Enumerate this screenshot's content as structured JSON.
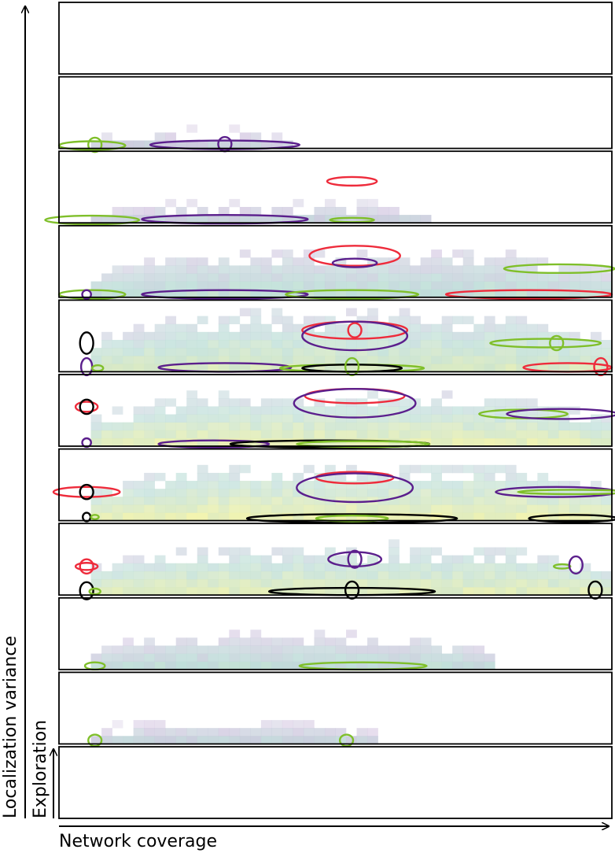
{
  "chart_data": {
    "type": "heatmap",
    "title": "",
    "xlabel": "Network coverage",
    "ylabel": "Localization variance",
    "inner_ylabel": "Exploration",
    "grid": false,
    "colors": {
      "purple": "#5b1f8c",
      "green": "#7fbf2a",
      "red": "#ee2b3b",
      "black": "#000000",
      "heat_low": "#c9b6d9",
      "heat_mid": "#b9dcd6",
      "heat_high": "#f4f4a8"
    },
    "panels": [
      {
        "density": {
          "left": 0.06,
          "right": 0.06,
          "height": 0.0,
          "intensity": 0.0
        },
        "markers": []
      },
      {
        "density": {
          "left": 0.06,
          "right": 0.42,
          "height": 0.18,
          "intensity": 0.25
        },
        "markers": [
          {
            "color": "green",
            "cx": 0.06,
            "cy": 0.04,
            "rx": 0.06,
            "ry": 0.06
          },
          {
            "color": "green",
            "cx": 0.065,
            "cy": 0.05,
            "rx": 0.012,
            "ry": 0.1
          },
          {
            "color": "purple",
            "cx": 0.3,
            "cy": 0.05,
            "rx": 0.135,
            "ry": 0.06
          },
          {
            "color": "purple",
            "cx": 0.3,
            "cy": 0.06,
            "rx": 0.012,
            "ry": 0.1
          }
        ]
      },
      {
        "density": {
          "left": 0.06,
          "right": 0.67,
          "height": 0.2,
          "intensity": 0.3
        },
        "markers": [
          {
            "color": "green",
            "cx": 0.06,
            "cy": 0.04,
            "rx": 0.085,
            "ry": 0.06
          },
          {
            "color": "purple",
            "cx": 0.3,
            "cy": 0.05,
            "rx": 0.15,
            "ry": 0.06
          },
          {
            "color": "green",
            "cx": 0.53,
            "cy": 0.04,
            "rx": 0.04,
            "ry": 0.03
          },
          {
            "color": "red",
            "cx": 0.53,
            "cy": 0.58,
            "rx": 0.045,
            "ry": 0.06
          }
        ]
      },
      {
        "density": {
          "left": 0.06,
          "right": 1.0,
          "height": 0.55,
          "intensity": 0.5
        },
        "markers": [
          {
            "color": "green",
            "cx": 0.06,
            "cy": 0.04,
            "rx": 0.06,
            "ry": 0.06
          },
          {
            "color": "purple",
            "cx": 0.05,
            "cy": 0.04,
            "rx": 0.008,
            "ry": 0.06
          },
          {
            "color": "purple",
            "cx": 0.3,
            "cy": 0.04,
            "rx": 0.15,
            "ry": 0.06
          },
          {
            "color": "green",
            "cx": 0.53,
            "cy": 0.04,
            "rx": 0.12,
            "ry": 0.06
          },
          {
            "color": "red",
            "cx": 0.85,
            "cy": 0.04,
            "rx": 0.15,
            "ry": 0.06
          },
          {
            "color": "red",
            "cx": 0.535,
            "cy": 0.58,
            "rx": 0.082,
            "ry": 0.14
          },
          {
            "color": "purple",
            "cx": 0.535,
            "cy": 0.48,
            "rx": 0.04,
            "ry": 0.06
          },
          {
            "color": "green",
            "cx": 0.905,
            "cy": 0.4,
            "rx": 0.1,
            "ry": 0.06
          }
        ]
      },
      {
        "density": {
          "left": 0.06,
          "right": 1.0,
          "height": 0.75,
          "intensity": 0.75
        },
        "markers": [
          {
            "color": "black",
            "cx": 0.05,
            "cy": 0.4,
            "rx": 0.012,
            "ry": 0.15
          },
          {
            "color": "purple",
            "cx": 0.05,
            "cy": 0.07,
            "rx": 0.01,
            "ry": 0.12
          },
          {
            "color": "green",
            "cx": 0.07,
            "cy": 0.05,
            "rx": 0.01,
            "ry": 0.04
          },
          {
            "color": "purple",
            "cx": 0.3,
            "cy": 0.06,
            "rx": 0.12,
            "ry": 0.06
          },
          {
            "color": "green",
            "cx": 0.53,
            "cy": 0.05,
            "rx": 0.13,
            "ry": 0.05
          },
          {
            "color": "black",
            "cx": 0.53,
            "cy": 0.05,
            "rx": 0.09,
            "ry": 0.05
          },
          {
            "color": "green",
            "cx": 0.53,
            "cy": 0.07,
            "rx": 0.012,
            "ry": 0.12
          },
          {
            "color": "red",
            "cx": 0.535,
            "cy": 0.58,
            "rx": 0.095,
            "ry": 0.12
          },
          {
            "color": "purple",
            "cx": 0.535,
            "cy": 0.5,
            "rx": 0.095,
            "ry": 0.2
          },
          {
            "color": "red",
            "cx": 0.535,
            "cy": 0.58,
            "rx": 0.012,
            "ry": 0.1
          },
          {
            "color": "green",
            "cx": 0.88,
            "cy": 0.4,
            "rx": 0.1,
            "ry": 0.06
          },
          {
            "color": "green",
            "cx": 0.9,
            "cy": 0.4,
            "rx": 0.012,
            "ry": 0.1
          },
          {
            "color": "red",
            "cx": 0.92,
            "cy": 0.06,
            "rx": 0.08,
            "ry": 0.06
          },
          {
            "color": "red",
            "cx": 0.98,
            "cy": 0.07,
            "rx": 0.012,
            "ry": 0.12
          }
        ]
      },
      {
        "density": {
          "left": 0.06,
          "right": 1.0,
          "height": 0.65,
          "intensity": 0.9
        },
        "markers": [
          {
            "color": "red",
            "cx": 0.05,
            "cy": 0.55,
            "rx": 0.02,
            "ry": 0.07
          },
          {
            "color": "black",
            "cx": 0.05,
            "cy": 0.55,
            "rx": 0.012,
            "ry": 0.1
          },
          {
            "color": "purple",
            "cx": 0.05,
            "cy": 0.05,
            "rx": 0.008,
            "ry": 0.06
          },
          {
            "color": "purple",
            "cx": 0.28,
            "cy": 0.03,
            "rx": 0.1,
            "ry": 0.05
          },
          {
            "color": "black",
            "cx": 0.49,
            "cy": 0.03,
            "rx": 0.18,
            "ry": 0.05
          },
          {
            "color": "green",
            "cx": 0.55,
            "cy": 0.03,
            "rx": 0.12,
            "ry": 0.04
          },
          {
            "color": "red",
            "cx": 0.535,
            "cy": 0.7,
            "rx": 0.09,
            "ry": 0.1
          },
          {
            "color": "purple",
            "cx": 0.535,
            "cy": 0.6,
            "rx": 0.11,
            "ry": 0.2
          },
          {
            "color": "green",
            "cx": 0.84,
            "cy": 0.45,
            "rx": 0.08,
            "ry": 0.06
          },
          {
            "color": "purple",
            "cx": 0.91,
            "cy": 0.45,
            "rx": 0.1,
            "ry": 0.07
          }
        ]
      },
      {
        "density": {
          "left": 0.05,
          "right": 1.0,
          "height": 0.7,
          "intensity": 0.95
        },
        "markers": [
          {
            "color": "red",
            "cx": 0.05,
            "cy": 0.4,
            "rx": 0.06,
            "ry": 0.07
          },
          {
            "color": "black",
            "cx": 0.05,
            "cy": 0.4,
            "rx": 0.012,
            "ry": 0.1
          },
          {
            "color": "black",
            "cx": 0.05,
            "cy": 0.05,
            "rx": 0.007,
            "ry": 0.06
          },
          {
            "color": "green",
            "cx": 0.065,
            "cy": 0.05,
            "rx": 0.007,
            "ry": 0.03
          },
          {
            "color": "black",
            "cx": 0.53,
            "cy": 0.03,
            "rx": 0.19,
            "ry": 0.06
          },
          {
            "color": "green",
            "cx": 0.53,
            "cy": 0.03,
            "rx": 0.065,
            "ry": 0.04
          },
          {
            "color": "red",
            "cx": 0.535,
            "cy": 0.6,
            "rx": 0.07,
            "ry": 0.08
          },
          {
            "color": "purple",
            "cx": 0.535,
            "cy": 0.46,
            "rx": 0.105,
            "ry": 0.2
          },
          {
            "color": "purple",
            "cx": 0.9,
            "cy": 0.4,
            "rx": 0.11,
            "ry": 0.07
          },
          {
            "color": "green",
            "cx": 0.93,
            "cy": 0.4,
            "rx": 0.1,
            "ry": 0.03
          },
          {
            "color": "black",
            "cx": 0.93,
            "cy": 0.03,
            "rx": 0.08,
            "ry": 0.05
          }
        ]
      },
      {
        "density": {
          "left": 0.06,
          "right": 1.0,
          "height": 0.62,
          "intensity": 0.85
        },
        "markers": [
          {
            "color": "red",
            "cx": 0.05,
            "cy": 0.4,
            "rx": 0.02,
            "ry": 0.05
          },
          {
            "color": "red",
            "cx": 0.05,
            "cy": 0.4,
            "rx": 0.012,
            "ry": 0.1
          },
          {
            "color": "black",
            "cx": 0.05,
            "cy": 0.06,
            "rx": 0.012,
            "ry": 0.12
          },
          {
            "color": "green",
            "cx": 0.065,
            "cy": 0.05,
            "rx": 0.01,
            "ry": 0.04
          },
          {
            "color": "black",
            "cx": 0.53,
            "cy": 0.05,
            "rx": 0.15,
            "ry": 0.05
          },
          {
            "color": "black",
            "cx": 0.53,
            "cy": 0.07,
            "rx": 0.012,
            "ry": 0.12
          },
          {
            "color": "purple",
            "cx": 0.535,
            "cy": 0.5,
            "rx": 0.048,
            "ry": 0.1
          },
          {
            "color": "purple",
            "cx": 0.535,
            "cy": 0.5,
            "rx": 0.012,
            "ry": 0.12
          },
          {
            "color": "green",
            "cx": 0.91,
            "cy": 0.4,
            "rx": 0.015,
            "ry": 0.03
          },
          {
            "color": "purple",
            "cx": 0.935,
            "cy": 0.42,
            "rx": 0.012,
            "ry": 0.12
          },
          {
            "color": "black",
            "cx": 0.97,
            "cy": 0.07,
            "rx": 0.012,
            "ry": 0.12
          }
        ]
      },
      {
        "density": {
          "left": 0.06,
          "right": 0.79,
          "height": 0.42,
          "intensity": 0.45
        },
        "markers": [
          {
            "color": "green",
            "cx": 0.065,
            "cy": 0.05,
            "rx": 0.018,
            "ry": 0.05
          },
          {
            "color": "green",
            "cx": 0.55,
            "cy": 0.05,
            "rx": 0.115,
            "ry": 0.05
          }
        ]
      },
      {
        "density": {
          "left": 0.06,
          "right": 0.58,
          "height": 0.22,
          "intensity": 0.35
        },
        "markers": [
          {
            "color": "green",
            "cx": 0.065,
            "cy": 0.05,
            "rx": 0.012,
            "ry": 0.08
          },
          {
            "color": "green",
            "cx": 0.52,
            "cy": 0.05,
            "rx": 0.012,
            "ry": 0.08
          }
        ]
      },
      {
        "density": {
          "left": 0.06,
          "right": 0.06,
          "height": 0.0,
          "intensity": 0.0
        },
        "markers": []
      }
    ]
  }
}
